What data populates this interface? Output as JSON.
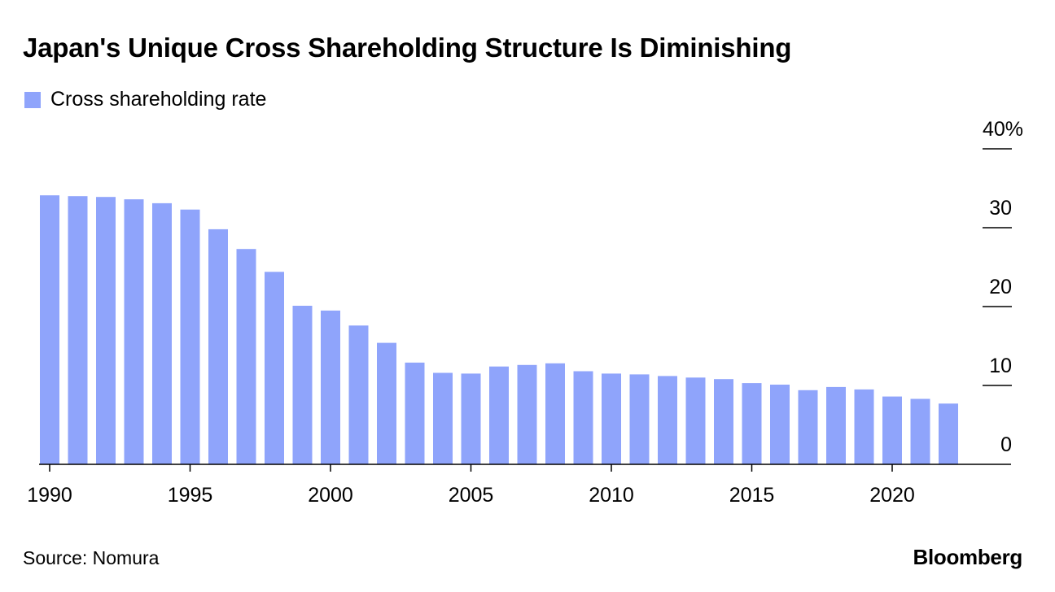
{
  "chart_data": {
    "type": "bar",
    "title": "Japan's Unique Cross Shareholding Structure Is Diminishing",
    "series": [
      {
        "name": "Cross shareholding rate",
        "color": "#8fa4fb",
        "x": [
          1990,
          1991,
          1992,
          1993,
          1994,
          1995,
          1996,
          1997,
          1998,
          1999,
          2000,
          2001,
          2002,
          2003,
          2004,
          2005,
          2006,
          2007,
          2008,
          2009,
          2010,
          2011,
          2012,
          2013,
          2014,
          2015,
          2016,
          2017,
          2018,
          2019,
          2020,
          2021,
          2022
        ],
        "values": [
          34.1,
          34.0,
          33.9,
          33.6,
          33.1,
          32.3,
          29.8,
          27.3,
          24.4,
          20.1,
          19.5,
          17.6,
          15.4,
          12.9,
          11.6,
          11.5,
          12.4,
          12.6,
          12.8,
          11.8,
          11.5,
          11.4,
          11.2,
          11.0,
          10.8,
          10.3,
          10.1,
          9.4,
          9.8,
          9.5,
          8.6,
          8.3,
          7.7
        ]
      }
    ],
    "x_ticks": [
      "1990",
      "1995",
      "2000",
      "2005",
      "2010",
      "2015",
      "2020"
    ],
    "x_tick_values": [
      1990,
      1995,
      2000,
      2005,
      2010,
      2015,
      2020
    ],
    "y_ticks": [
      "0",
      "10",
      "20",
      "30",
      "40%"
    ],
    "y_tick_values": [
      0,
      10,
      20,
      30,
      40
    ],
    "ylim": [
      0,
      40
    ],
    "y_axis_position": "right",
    "grid": false,
    "legend_position": "top-left"
  },
  "source": "Source: Nomura",
  "brand": "Bloomberg"
}
